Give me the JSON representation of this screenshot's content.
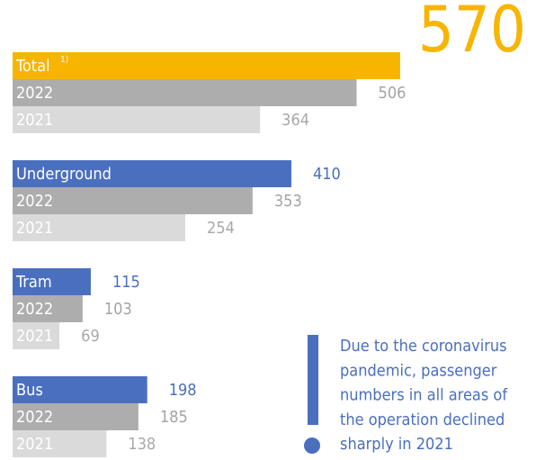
{
  "chart_data": {
    "type": "bar",
    "orientation": "horizontal",
    "categories": [
      "Total",
      "Underground",
      "Tram",
      "Bus"
    ],
    "total_note": "1)",
    "series": [
      {
        "colors": [
          "#f7b500",
          "#4a6fbf",
          "#4a6fbf",
          "#4a6fbf"
        ],
        "values": [
          570,
          410,
          115,
          198
        ]
      },
      {
        "name": "2022",
        "color": "#adadad",
        "label_color": "#a3a3a3",
        "values": [
          506,
          353,
          103,
          185
        ]
      },
      {
        "name": "2021",
        "color": "#dadada",
        "label_color": "#a8a8a8",
        "values": [
          364,
          254,
          69,
          138
        ]
      }
    ],
    "note": [
      "Due to the coronavirus",
      "pandemic, passenger",
      "numbers in all areas of",
      "the operation declined",
      "sharply in 2021"
    ],
    "note_color": "#4a6fbf"
  }
}
